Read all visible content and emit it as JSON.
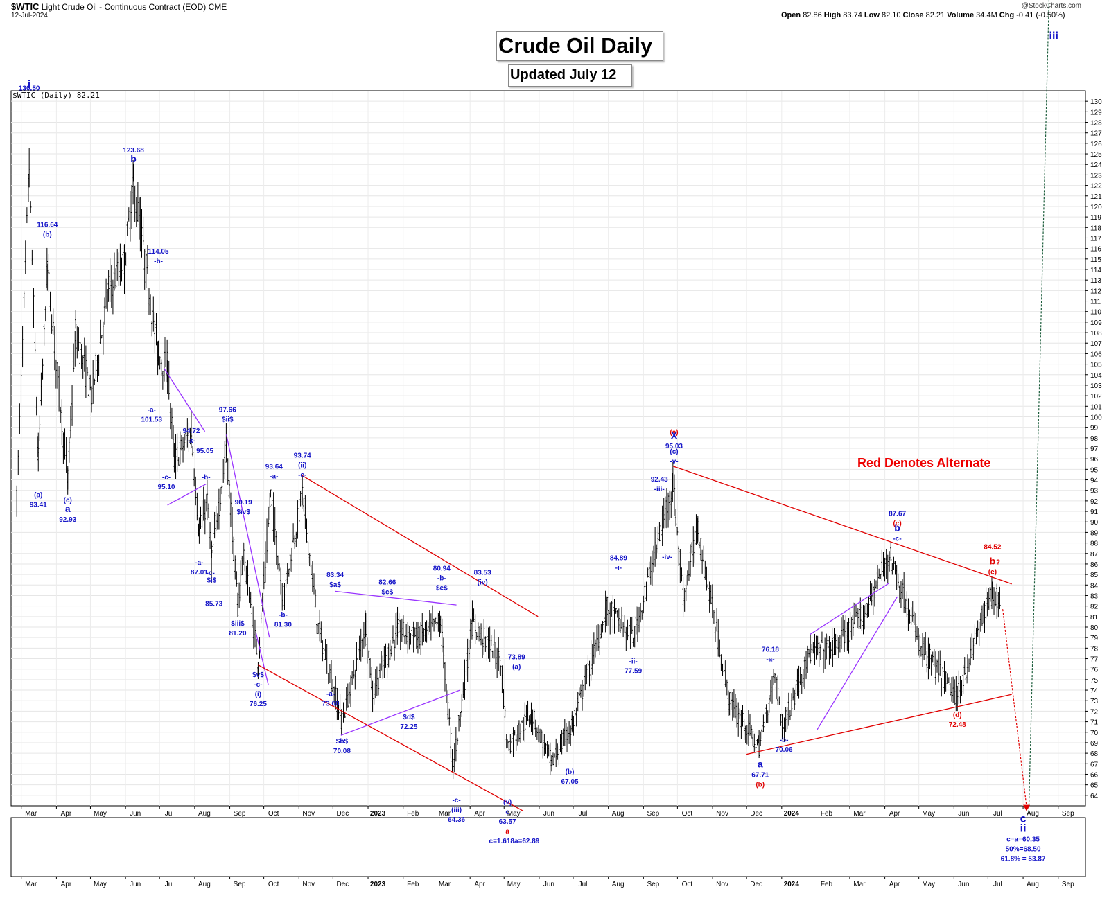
{
  "header": {
    "symbol": "$WTIC",
    "name": "Light Crude Oil - Continuous Contract (EOD)",
    "exchange": "CME",
    "date": "12-Jul-2024",
    "open_label": "Open",
    "open": "82.86",
    "high_label": "High",
    "high": "83.74",
    "low_label": "Low",
    "low": "82.10",
    "close_label": "Close",
    "close": "82.21",
    "volume_label": "Volume",
    "volume": "34.4M",
    "chg_label": "Chg",
    "chg": "-0.41 (-0.50%)",
    "brand": "@StockCharts.com"
  },
  "series_label": "$WTIC (Daily) 82.21",
  "title": "Crude Oil Daily",
  "subtitle": "Updated July 12",
  "note": "Red Denotes Alternate",
  "colors": {
    "blue": "#1515c8",
    "red": "#e00000",
    "purple": "#9933ff",
    "green": "#1a5c3a",
    "bars": "#000000"
  },
  "chart_data": {
    "type": "ohlc",
    "y_range": [
      63,
      131
    ],
    "y_ticks": [
      64,
      65,
      66,
      67,
      68,
      69,
      70,
      71,
      72,
      73,
      74,
      75,
      76,
      77,
      78,
      79,
      80,
      81,
      82,
      83,
      84,
      85,
      86,
      87,
      88,
      89,
      90,
      91,
      92,
      93,
      94,
      95,
      96,
      97,
      98,
      99,
      100,
      101,
      102,
      103,
      104,
      105,
      106,
      107,
      108,
      109,
      110,
      111,
      112,
      113,
      114,
      115,
      116,
      117,
      118,
      119,
      120,
      121,
      122,
      123,
      124,
      125,
      126,
      127,
      128,
      129,
      130
    ],
    "x_months": [
      "Mar",
      "Apr",
      "May",
      "Jun",
      "Jul",
      "Aug",
      "Sep",
      "Oct",
      "Nov",
      "Dec",
      "2023",
      "Feb",
      "Mar",
      "Apr",
      "May",
      "Jun",
      "Jul",
      "Aug",
      "Sep",
      "Oct",
      "Nov",
      "Dec",
      "2024",
      "Feb",
      "Mar",
      "Apr",
      "May",
      "Jun",
      "Jul",
      "Aug",
      "Sep"
    ],
    "close_path": [
      [
        "2022-02-25",
        92
      ],
      [
        "2022-03-08",
        123.7
      ],
      [
        "2022-03-16",
        96
      ],
      [
        "2022-03-24",
        114
      ],
      [
        "2022-04-11",
        94
      ],
      [
        "2022-04-18",
        108
      ],
      [
        "2022-05-02",
        102
      ],
      [
        "2022-05-17",
        112
      ],
      [
        "2022-05-31",
        114.7
      ],
      [
        "2022-06-08",
        122
      ],
      [
        "2022-06-14",
        118
      ],
      [
        "2022-06-30",
        105.8
      ],
      [
        "2022-07-08",
        104.8
      ],
      [
        "2022-07-14",
        95.8
      ],
      [
        "2022-07-29",
        98.6
      ],
      [
        "2022-08-05",
        89
      ],
      [
        "2022-08-12",
        92
      ],
      [
        "2022-08-16",
        86.5
      ],
      [
        "2022-08-29",
        97
      ],
      [
        "2022-09-08",
        81.9
      ],
      [
        "2022-09-13",
        87.3
      ],
      [
        "2022-09-26",
        76.7
      ],
      [
        "2022-10-07",
        92.6
      ],
      [
        "2022-10-18",
        82.8
      ],
      [
        "2022-11-04",
        92.6
      ],
      [
        "2022-11-18",
        80
      ],
      [
        "2022-12-09",
        71
      ],
      [
        "2022-12-30",
        80.3
      ],
      [
        "2023-01-05",
        73.7
      ],
      [
        "2023-01-27",
        79.7
      ],
      [
        "2023-02-14",
        79
      ],
      [
        "2023-03-06",
        80.5
      ],
      [
        "2023-03-17",
        66.7
      ],
      [
        "2023-04-03",
        80.4
      ],
      [
        "2023-04-28",
        76.8
      ],
      [
        "2023-05-04",
        68.6
      ],
      [
        "2023-05-25",
        71.8
      ],
      [
        "2023-06-12",
        67.1
      ],
      [
        "2023-06-30",
        70.6
      ],
      [
        "2023-07-31",
        81.8
      ],
      [
        "2023-08-23",
        78.9
      ],
      [
        "2023-09-27",
        93.7
      ],
      [
        "2023-10-06",
        82.8
      ],
      [
        "2023-10-19",
        89.4
      ],
      [
        "2023-11-16",
        72.9
      ],
      [
        "2023-12-12",
        68.6
      ],
      [
        "2023-12-26",
        75.6
      ],
      [
        "2024-01-02",
        70.4
      ],
      [
        "2024-01-25",
        77.4
      ],
      [
        "2024-02-15",
        78
      ],
      [
        "2024-03-14",
        81.3
      ],
      [
        "2024-04-05",
        86.9
      ],
      [
        "2024-05-03",
        78.1
      ],
      [
        "2024-06-04",
        73.3
      ],
      [
        "2024-06-28",
        81.5
      ],
      [
        "2024-07-05",
        83.2
      ],
      [
        "2024-07-12",
        82.2
      ]
    ],
    "projection": {
      "green_to": 158,
      "red_to": 62.5
    },
    "labels": [
      {
        "text": "130.50",
        "x": "2022-03-08",
        "y": 130.5,
        "color": "blue",
        "anchor": "above"
      },
      {
        "text": "i",
        "x": "2022-03-08",
        "y": 130.5,
        "color": "blue",
        "anchor": "big"
      },
      {
        "text": "(a)",
        "x": "2022-03-16",
        "y": 93.4,
        "color": "blue",
        "anchor": "below"
      },
      {
        "text": "93.41",
        "x": "2022-03-16",
        "y": 93.4,
        "color": "blue",
        "anchor": "below2"
      },
      {
        "text": "116.64",
        "x": "2022-03-24",
        "y": 116.6,
        "color": "blue",
        "anchor": "above2"
      },
      {
        "text": "(b)",
        "x": "2022-03-24",
        "y": 116.6,
        "color": "blue",
        "anchor": "above"
      },
      {
        "text": "(c)",
        "x": "2022-04-11",
        "y": 92.9,
        "color": "blue",
        "anchor": "below"
      },
      {
        "text": "a",
        "x": "2022-04-11",
        "y": 92.9,
        "color": "blue",
        "anchor": "below2"
      },
      {
        "text": "92.93",
        "x": "2022-04-11",
        "y": 92.9,
        "color": "blue",
        "anchor": "below3"
      },
      {
        "text": "123.68",
        "x": "2022-06-08",
        "y": 123.7,
        "color": "blue",
        "anchor": "above2"
      },
      {
        "text": "b",
        "x": "2022-06-08",
        "y": 123.7,
        "color": "blue",
        "anchor": "above"
      },
      {
        "text": "114.05",
        "x": "2022-06-30",
        "y": 114.05,
        "color": "blue",
        "anchor": "above2"
      },
      {
        "text": "-b-",
        "x": "2022-06-30",
        "y": 114.05,
        "color": "blue",
        "anchor": "above"
      },
      {
        "text": "-a-",
        "x": "2022-06-24",
        "y": 101.5,
        "color": "blue",
        "anchor": "below"
      },
      {
        "text": "101.53",
        "x": "2022-06-24",
        "y": 101.5,
        "color": "blue",
        "anchor": "below2"
      },
      {
        "text": "-c-",
        "x": "2022-07-07",
        "y": 95.1,
        "color": "blue",
        "anchor": "below"
      },
      {
        "text": "95.10",
        "x": "2022-07-07",
        "y": 95.1,
        "color": "blue",
        "anchor": "below2"
      },
      {
        "text": "94.72",
        "x": "2022-07-29",
        "y": 97,
        "color": "blue",
        "anchor": "above2"
      },
      {
        "text": "-x-",
        "x": "2022-07-29",
        "y": 97,
        "color": "blue",
        "anchor": "above"
      },
      {
        "text": "95.05",
        "x": "2022-08-10",
        "y": 96,
        "color": "blue",
        "anchor": "above"
      },
      {
        "text": "-b-",
        "x": "2022-08-11",
        "y": 93.5,
        "color": "blue",
        "anchor": "above"
      },
      {
        "text": "97.66",
        "x": "2022-08-30",
        "y": 99,
        "color": "blue",
        "anchor": "above2"
      },
      {
        "text": "$ii$",
        "x": "2022-08-30",
        "y": 99,
        "color": "blue",
        "anchor": "above"
      },
      {
        "text": "-a-",
        "x": "2022-08-05",
        "y": 87,
        "color": "blue",
        "anchor": "below"
      },
      {
        "text": "87.01",
        "x": "2022-08-05",
        "y": 87,
        "color": "blue",
        "anchor": "below2"
      },
      {
        "text": "-c-",
        "x": "2022-08-15",
        "y": 86,
        "color": "blue",
        "anchor": "below"
      },
      {
        "text": "$i$",
        "x": "2022-08-16",
        "y": 85.3,
        "color": "blue",
        "anchor": "below"
      },
      {
        "text": "85.73",
        "x": "2022-08-18",
        "y": 84,
        "color": "blue",
        "anchor": "below2"
      },
      {
        "text": "90.19",
        "x": "2022-09-13",
        "y": 90.2,
        "color": "blue",
        "anchor": "above2"
      },
      {
        "text": "$iv$",
        "x": "2022-09-13",
        "y": 90.2,
        "color": "blue",
        "anchor": "above"
      },
      {
        "text": "$iii$",
        "x": "2022-09-08",
        "y": 81.2,
        "color": "blue",
        "anchor": "below"
      },
      {
        "text": "81.20",
        "x": "2022-09-08",
        "y": 81.2,
        "color": "blue",
        "anchor": "below2"
      },
      {
        "text": "$v$",
        "x": "2022-09-26",
        "y": 76.3,
        "color": "blue",
        "anchor": "below"
      },
      {
        "text": "-c-",
        "x": "2022-09-26",
        "y": 76.3,
        "color": "blue",
        "anchor": "below2"
      },
      {
        "text": "(i)",
        "x": "2022-09-26",
        "y": 76.3,
        "color": "blue",
        "anchor": "below3"
      },
      {
        "text": "76.25",
        "x": "2022-09-26",
        "y": 76.3,
        "color": "blue",
        "anchor": "below4"
      },
      {
        "text": "93.64",
        "x": "2022-10-10",
        "y": 93.6,
        "color": "blue",
        "anchor": "above2"
      },
      {
        "text": "-a-",
        "x": "2022-10-10",
        "y": 93.6,
        "color": "blue",
        "anchor": "above"
      },
      {
        "text": "-b-",
        "x": "2022-10-18",
        "y": 82,
        "color": "blue",
        "anchor": "below"
      },
      {
        "text": "81.30",
        "x": "2022-10-18",
        "y": 82,
        "color": "blue",
        "anchor": "below2"
      },
      {
        "text": "93.74",
        "x": "2022-11-04",
        "y": 93.74,
        "color": "blue",
        "anchor": "above3"
      },
      {
        "text": "(ii)",
        "x": "2022-11-04",
        "y": 93.74,
        "color": "blue",
        "anchor": "above2"
      },
      {
        "text": "-c-",
        "x": "2022-11-04",
        "y": 93.74,
        "color": "blue",
        "anchor": "above"
      },
      {
        "text": "-a-",
        "x": "2022-11-29",
        "y": 74.5,
        "color": "blue",
        "anchor": "below"
      },
      {
        "text": "73.60",
        "x": "2022-11-29",
        "y": 74.5,
        "color": "blue",
        "anchor": "below2"
      },
      {
        "text": "83.34",
        "x": "2022-12-03",
        "y": 83.3,
        "color": "blue",
        "anchor": "above2"
      },
      {
        "text": "$a$",
        "x": "2022-12-03",
        "y": 83.3,
        "color": "blue",
        "anchor": "above"
      },
      {
        "text": "$b$",
        "x": "2022-12-09",
        "y": 70,
        "color": "blue",
        "anchor": "below"
      },
      {
        "text": "70.08",
        "x": "2022-12-09",
        "y": 70,
        "color": "blue",
        "anchor": "below2"
      },
      {
        "text": "82.66",
        "x": "2023-01-18",
        "y": 82.6,
        "color": "blue",
        "anchor": "above2"
      },
      {
        "text": "$c$",
        "x": "2023-01-18",
        "y": 82.6,
        "color": "blue",
        "anchor": "above"
      },
      {
        "text": "$d$",
        "x": "2023-02-06",
        "y": 72.3,
        "color": "blue",
        "anchor": "below"
      },
      {
        "text": "72.25",
        "x": "2023-02-06",
        "y": 72.3,
        "color": "blue",
        "anchor": "below2"
      },
      {
        "text": "80.94",
        "x": "2023-03-07",
        "y": 83,
        "color": "blue",
        "anchor": "above3"
      },
      {
        "text": "-b-",
        "x": "2023-03-07",
        "y": 83,
        "color": "blue",
        "anchor": "above2"
      },
      {
        "text": "$e$",
        "x": "2023-03-07",
        "y": 83,
        "color": "blue",
        "anchor": "above"
      },
      {
        "text": "-c-",
        "x": "2023-03-20",
        "y": 64.4,
        "color": "blue",
        "anchor": "below"
      },
      {
        "text": "(iii)",
        "x": "2023-03-20",
        "y": 64.4,
        "color": "blue",
        "anchor": "below2"
      },
      {
        "text": "64.36",
        "x": "2023-03-20",
        "y": 64.4,
        "color": "blue",
        "anchor": "below3"
      },
      {
        "text": "83.53",
        "x": "2023-04-12",
        "y": 83.53,
        "color": "blue",
        "anchor": "above2"
      },
      {
        "text": "(iv)",
        "x": "2023-04-12",
        "y": 83.53,
        "color": "blue",
        "anchor": "above"
      },
      {
        "text": "(v)",
        "x": "2023-05-04",
        "y": 64.2,
        "color": "blue",
        "anchor": "below"
      },
      {
        "text": "c",
        "x": "2023-05-04",
        "y": 64.2,
        "color": "blue",
        "anchor": "below2"
      },
      {
        "text": "63.57",
        "x": "2023-05-04",
        "y": 64.2,
        "color": "blue",
        "anchor": "below3"
      },
      {
        "text": "a",
        "x": "2023-05-04",
        "y": 64.2,
        "color": "red",
        "anchor": "below4"
      },
      {
        "text": "c=1.618a=62.89",
        "x": "2023-05-10",
        "y": 64.2,
        "color": "blue",
        "anchor": "below5"
      },
      {
        "text": "73.89",
        "x": "2023-05-12",
        "y": 75.5,
        "color": "blue",
        "anchor": "above2"
      },
      {
        "text": "(a)",
        "x": "2023-05-12",
        "y": 75.5,
        "color": "blue",
        "anchor": "above"
      },
      {
        "text": "(b)",
        "x": "2023-06-28",
        "y": 67.1,
        "color": "blue",
        "anchor": "below"
      },
      {
        "text": "67.05",
        "x": "2023-06-28",
        "y": 67.1,
        "color": "blue",
        "anchor": "below2"
      },
      {
        "text": "84.89",
        "x": "2023-08-10",
        "y": 84.9,
        "color": "blue",
        "anchor": "above2"
      },
      {
        "text": "-i-",
        "x": "2023-08-10",
        "y": 84.9,
        "color": "blue",
        "anchor": "above"
      },
      {
        "text": "-ii-",
        "x": "2023-08-23",
        "y": 77.6,
        "color": "blue",
        "anchor": "below"
      },
      {
        "text": "77.59",
        "x": "2023-08-23",
        "y": 77.6,
        "color": "blue",
        "anchor": "below2"
      },
      {
        "text": "92.43",
        "x": "2023-09-15",
        "y": 92.4,
        "color": "blue",
        "anchor": "above2"
      },
      {
        "text": "-iii-",
        "x": "2023-09-15",
        "y": 92.4,
        "color": "blue",
        "anchor": "above"
      },
      {
        "text": "-iv-",
        "x": "2023-09-22",
        "y": 87.5,
        "color": "blue",
        "anchor": "below"
      },
      {
        "text": "(a)",
        "x": "2023-09-28",
        "y": 95.03,
        "color": "red",
        "anchor": "above6"
      },
      {
        "text": "95.03",
        "x": "2023-09-28",
        "y": 95.03,
        "color": "blue",
        "anchor": "above5"
      },
      {
        "text": "X",
        "x": "2023-09-28",
        "y": 95.03,
        "color": "blue",
        "anchor": "above4"
      },
      {
        "text": "(c)",
        "x": "2023-09-28",
        "y": 95.03,
        "color": "blue",
        "anchor": "above2"
      },
      {
        "text": "-v-",
        "x": "2023-09-28",
        "y": 95.03,
        "color": "blue",
        "anchor": "above"
      },
      {
        "text": "-a-",
        "x": "2023-12-22",
        "y": 76.2,
        "color": "blue",
        "anchor": "above"
      },
      {
        "text": "76.18",
        "x": "2023-12-22",
        "y": 76.2,
        "color": "blue",
        "anchor": "above2"
      },
      {
        "text": "a",
        "x": "2023-12-13",
        "y": 67.7,
        "color": "blue",
        "anchor": "below"
      },
      {
        "text": "67.71",
        "x": "2023-12-13",
        "y": 67.7,
        "color": "blue",
        "anchor": "below2"
      },
      {
        "text": "(b)",
        "x": "2023-12-13",
        "y": 67.7,
        "color": "red",
        "anchor": "below3"
      },
      {
        "text": "-b-",
        "x": "2024-01-03",
        "y": 70.1,
        "color": "blue",
        "anchor": "below"
      },
      {
        "text": "70.06",
        "x": "2024-01-03",
        "y": 70.1,
        "color": "blue",
        "anchor": "below2"
      },
      {
        "text": "(c)",
        "x": "2024-04-12",
        "y": 87.67,
        "color": "red",
        "anchor": "above5"
      },
      {
        "text": "87.67",
        "x": "2024-04-12",
        "y": 87.67,
        "color": "blue",
        "anchor": "above4"
      },
      {
        "text": "b",
        "x": "2024-04-12",
        "y": 87.67,
        "color": "blue",
        "anchor": "above2"
      },
      {
        "text": "-c-",
        "x": "2024-04-12",
        "y": 87.67,
        "color": "blue",
        "anchor": "above"
      },
      {
        "text": "(d)",
        "x": "2024-06-04",
        "y": 72.5,
        "color": "red",
        "anchor": "below"
      },
      {
        "text": "72.48",
        "x": "2024-06-04",
        "y": 72.5,
        "color": "red",
        "anchor": "below2"
      },
      {
        "text": "84.52",
        "x": "2024-07-05",
        "y": 84.5,
        "color": "red",
        "anchor": "above4"
      },
      {
        "text": "b",
        "x": "2024-07-05",
        "y": 84.5,
        "color": "red",
        "anchor": "above2"
      },
      {
        "text": "?",
        "x": "2024-07-10",
        "y": 84.5,
        "color": "red",
        "anchor": "above2"
      },
      {
        "text": "(e)",
        "x": "2024-07-05",
        "y": 84.5,
        "color": "red",
        "anchor": "above"
      },
      {
        "text": "iii",
        "x": "2024-08-28",
        "y": 158,
        "color": "blue",
        "anchor": "corner"
      },
      {
        "text": "c",
        "x": "2024-08-01",
        "y": 62.5,
        "color": "blue",
        "anchor": "below"
      },
      {
        "text": "ii",
        "x": "2024-08-01",
        "y": 62.5,
        "color": "blue",
        "anchor": "below2"
      },
      {
        "text": "c=a=60.35",
        "x": "2024-08-01",
        "y": 62.5,
        "color": "blue",
        "anchor": "below3"
      },
      {
        "text": "50%=68.50",
        "x": "2024-08-01",
        "y": 62.5,
        "color": "blue",
        "anchor": "below4"
      },
      {
        "text": "61.8% = 53.87",
        "x": "2024-08-01",
        "y": 62.5,
        "color": "blue",
        "anchor": "below5"
      }
    ]
  }
}
